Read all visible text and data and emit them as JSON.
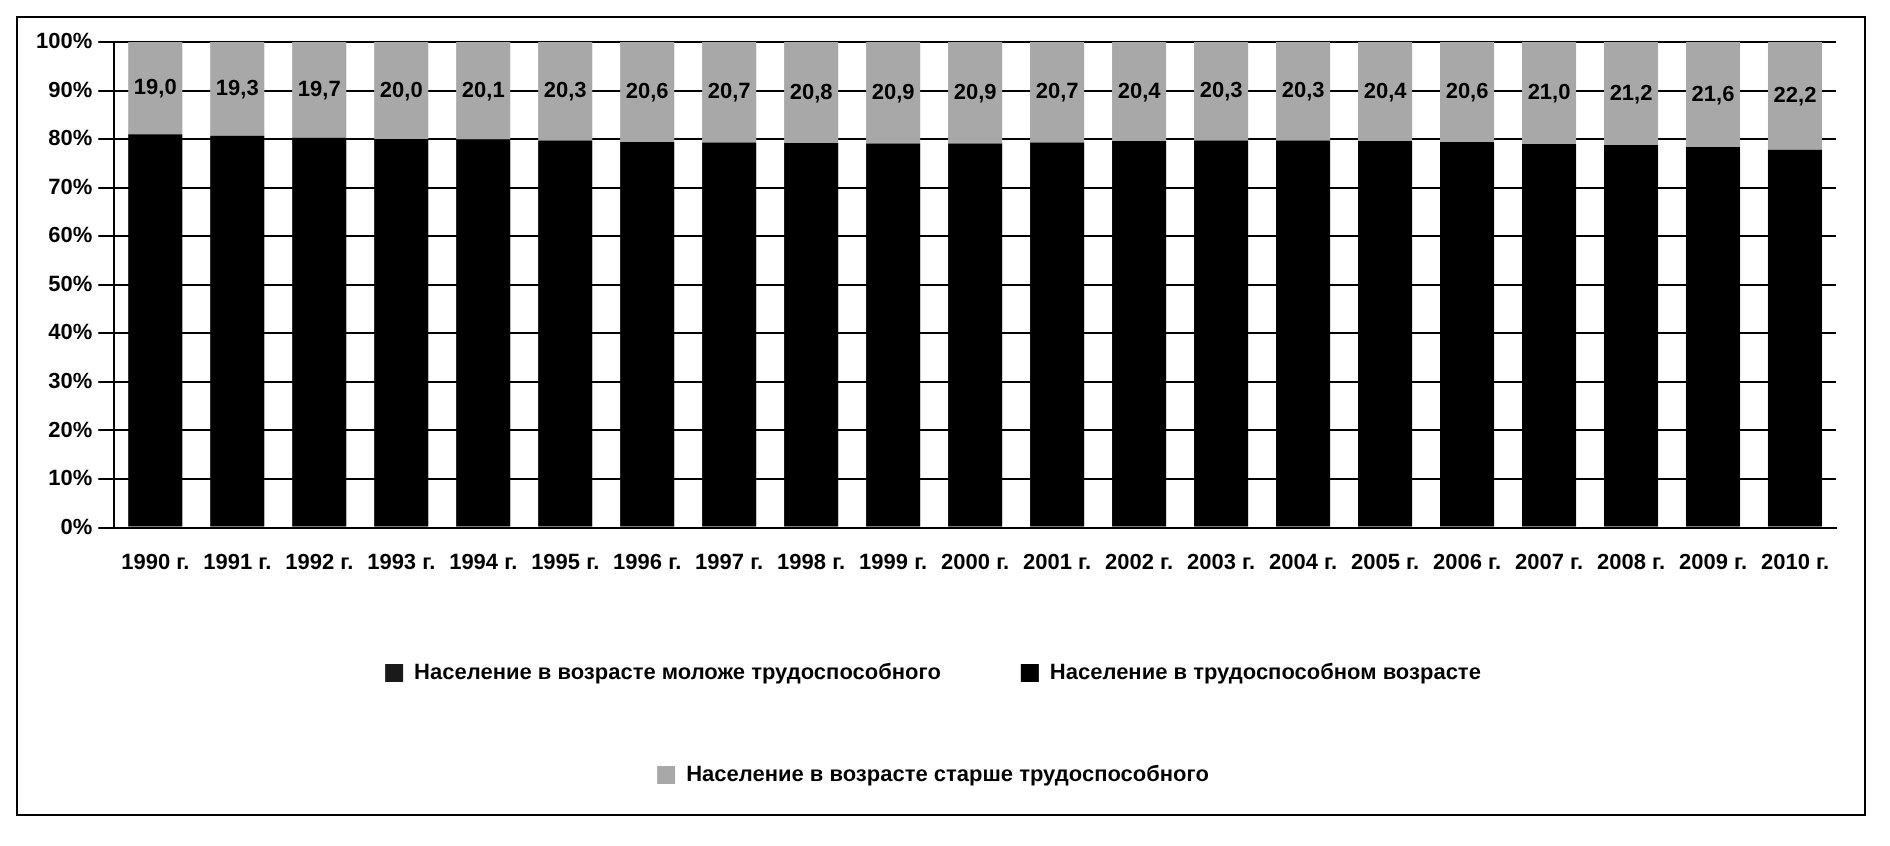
{
  "chart_data": {
    "type": "bar",
    "stacked": true,
    "categories": [
      "1990 г.",
      "1991 г.",
      "1992 г.",
      "1993 г.",
      "1994 г.",
      "1995 г.",
      "1996 г.",
      "1997 г.",
      "1998 г.",
      "1999 г.",
      "2000 г.",
      "2001 г.",
      "2002 г.",
      "2003 г.",
      "2004 г.",
      "2005 г.",
      "2006 г.",
      "2007 г.",
      "2008 г.",
      "2009 г.",
      "2010 г."
    ],
    "series": [
      {
        "name": "Население в возрасте моложе трудоспособного",
        "color": "#1a1a1a",
        "values": [
          null,
          null,
          null,
          null,
          null,
          null,
          null,
          null,
          null,
          null,
          null,
          null,
          null,
          null,
          null,
          null,
          null,
          null,
          null,
          null,
          null
        ]
      },
      {
        "name": "Население в трудоспособном возрасте",
        "color": "#000000",
        "values": [
          81.0,
          80.7,
          80.3,
          80.0,
          79.9,
          79.7,
          79.4,
          79.3,
          79.2,
          79.1,
          79.1,
          79.3,
          79.6,
          79.7,
          79.7,
          79.6,
          79.4,
          79.0,
          78.8,
          78.4,
          77.8
        ]
      },
      {
        "name": "Население в возрасте старше трудоспособного",
        "color": "#a8a8a8",
        "values": [
          19.0,
          19.3,
          19.7,
          20.0,
          20.1,
          20.3,
          20.6,
          20.7,
          20.8,
          20.9,
          20.9,
          20.7,
          20.4,
          20.3,
          20.3,
          20.4,
          20.6,
          21.0,
          21.2,
          21.6,
          22.2
        ],
        "value_labels": [
          "19,0",
          "19,3",
          "19,7",
          "20,0",
          "20,1",
          "20,3",
          "20,6",
          "20,7",
          "20,8",
          "20,9",
          "20,9",
          "20,7",
          "20,4",
          "20,3",
          "20,3",
          "20,4",
          "20,6",
          "21,0",
          "21,2",
          "21,6",
          "22,2"
        ]
      }
    ],
    "ylim": [
      0,
      100
    ],
    "yticks": [
      {
        "value": 0,
        "label": "0%"
      },
      {
        "value": 10,
        "label": "10%"
      },
      {
        "value": 20,
        "label": "20%"
      },
      {
        "value": 30,
        "label": "30%"
      },
      {
        "value": 40,
        "label": "40%"
      },
      {
        "value": 50,
        "label": "50%"
      },
      {
        "value": 60,
        "label": "60%"
      },
      {
        "value": 70,
        "label": "70%"
      },
      {
        "value": 80,
        "label": "80%"
      },
      {
        "value": 90,
        "label": "90%"
      },
      {
        "value": 100,
        "label": "100%"
      }
    ],
    "grid": "y",
    "legend": "bottom"
  }
}
